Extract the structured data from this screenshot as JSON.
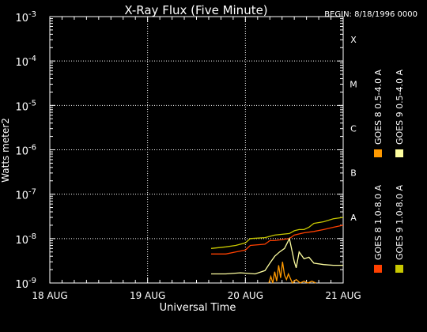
{
  "chart_data": {
    "type": "line",
    "title": "X-Ray Flux (Five Minute)",
    "begin_label": "BEGIN: 8/18/1996 0000",
    "xlabel": "Universal Time",
    "ylabel": "Watts meter2",
    "x_ticks": [
      "18 AUG",
      "19 AUG",
      "20 AUG",
      "21 AUG"
    ],
    "x_range_days": [
      0,
      3
    ],
    "y_scale": "log",
    "ylim": [
      1e-09,
      0.001
    ],
    "y_ticks": [
      {
        "base": "10",
        "exp": "-9"
      },
      {
        "base": "10",
        "exp": "-8"
      },
      {
        "base": "10",
        "exp": "-7"
      },
      {
        "base": "10",
        "exp": "-6"
      },
      {
        "base": "10",
        "exp": "-5"
      },
      {
        "base": "10",
        "exp": "-4"
      },
      {
        "base": "10",
        "exp": "-3"
      }
    ],
    "flare_classes": [
      {
        "label": "A",
        "value": 1e-08
      },
      {
        "label": "B",
        "value": 1e-07
      },
      {
        "label": "C",
        "value": 1e-06
      },
      {
        "label": "M",
        "value": 1e-05
      },
      {
        "label": "X",
        "value": 0.0001
      }
    ],
    "grid": true,
    "legend_position": "right",
    "series": [
      {
        "name": "GOES 8 1.0-8.0 A",
        "color": "#ff4000",
        "x": [
          1.65,
          1.8,
          1.9,
          2.0,
          2.05,
          2.2,
          2.25,
          2.3,
          2.45,
          2.5,
          2.6,
          2.7,
          2.8,
          2.9,
          3.0
        ],
        "y": [
          4.5e-09,
          4.5e-09,
          5e-09,
          5.5e-09,
          7e-09,
          7.5e-09,
          9e-09,
          9e-09,
          1e-08,
          1.2e-08,
          1.35e-08,
          1.45e-08,
          1.6e-08,
          1.8e-08,
          2e-08
        ]
      },
      {
        "name": "GOES 8 0.5-4.0 A",
        "color": "#ff9900",
        "x": [
          2.24,
          2.26,
          2.28,
          2.3,
          2.32,
          2.34,
          2.36,
          2.38,
          2.4,
          2.42,
          2.44,
          2.48,
          2.52,
          2.56,
          2.6,
          2.64,
          2.68,
          2.72
        ],
        "y": [
          1e-09,
          1.4e-09,
          1e-09,
          1.8e-09,
          1.1e-09,
          2.5e-09,
          1.3e-09,
          3e-09,
          1.5e-09,
          1.2e-09,
          1.6e-09,
          1e-09,
          1.2e-09,
          1e-09,
          1.1e-09,
          1e-09,
          1.1e-09,
          1e-09
        ]
      },
      {
        "name": "GOES 9 1.0-8.0 A",
        "color": "#c8c800",
        "x": [
          1.65,
          1.8,
          1.9,
          2.0,
          2.05,
          2.2,
          2.3,
          2.45,
          2.5,
          2.55,
          2.6,
          2.65,
          2.7,
          2.8,
          2.9,
          3.0
        ],
        "y": [
          6e-09,
          6.5e-09,
          7e-09,
          8e-09,
          1e-08,
          1.05e-08,
          1.2e-08,
          1.3e-08,
          1.5e-08,
          1.6e-08,
          1.6e-08,
          1.8e-08,
          2.2e-08,
          2.4e-08,
          2.8e-08,
          3e-08
        ]
      },
      {
        "name": "GOES 9 0.5-4.0 A",
        "color": "#ffffa0",
        "x": [
          1.65,
          1.8,
          1.95,
          2.1,
          2.2,
          2.25,
          2.3,
          2.35,
          2.4,
          2.45,
          2.5,
          2.52,
          2.55,
          2.6,
          2.65,
          2.7,
          2.8,
          2.9,
          3.0
        ],
        "y": [
          1.6e-09,
          1.6e-09,
          1.7e-09,
          1.6e-09,
          1.9e-09,
          2.8e-09,
          4e-09,
          5e-09,
          6e-09,
          1e-08,
          3e-09,
          2.2e-09,
          5e-09,
          3.5e-09,
          3.8e-09,
          2.8e-09,
          2.6e-09,
          2.5e-09,
          2.5e-09
        ]
      }
    ]
  }
}
